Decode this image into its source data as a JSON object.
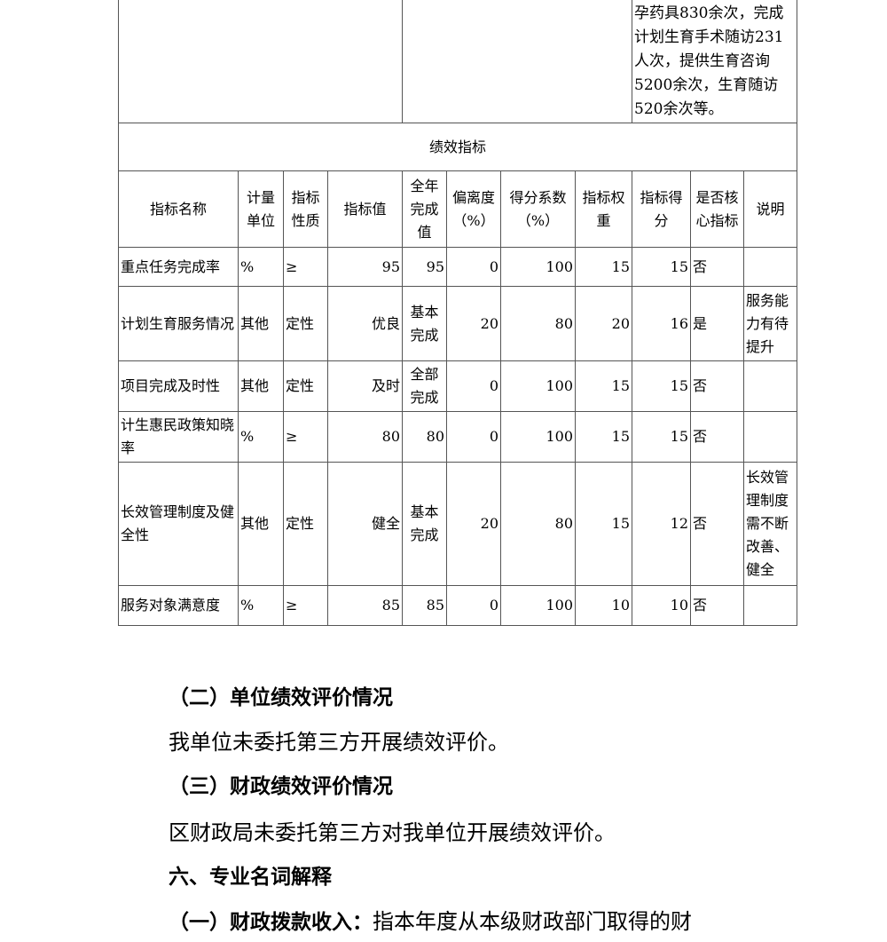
{
  "top_row_text": "孕药具830余次，完成计划生育手术随访231人次，提供生育咨询5200余次，生育随访520余次等。",
  "section_title": "绩效指标",
  "headers": [
    "指标名称",
    "计量单位",
    "指标性质",
    "指标值",
    "全年完成值",
    "偏离度（%）",
    "得分系数（%）",
    "指标权重",
    "指标得分",
    "是否核心指标",
    "说明"
  ],
  "rows": [
    [
      "重点任务完成率",
      "%",
      "≥",
      "95",
      "95",
      "0",
      "100",
      "15",
      "15",
      "否",
      ""
    ],
    [
      "计划生育服务情况",
      "其他",
      "定性",
      "优良",
      "基本完成",
      "20",
      "80",
      "20",
      "16",
      "是",
      "服务能力有待提升"
    ],
    [
      "项目完成及时性",
      "其他",
      "定性",
      "及时",
      "全部完成",
      "0",
      "100",
      "15",
      "15",
      "否",
      ""
    ],
    [
      "计生惠民政策知晓率",
      "%",
      "≥",
      "80",
      "80",
      "0",
      "100",
      "15",
      "15",
      "否",
      ""
    ],
    [
      "长效管理制度及健全性",
      "其他",
      "定性",
      "健全",
      "基本完成",
      "20",
      "80",
      "15",
      "12",
      "否",
      "长效管理制度需不断改善、健全"
    ],
    [
      "服务对象满意度",
      "%",
      "≥",
      "85",
      "85",
      "0",
      "100",
      "10",
      "10",
      "否",
      ""
    ]
  ],
  "paragraphs": {
    "h2": "（二）单位绩效评价情况",
    "p2": "我单位未委托第三方开展绩效评价。",
    "h3": "（三）财政绩效评价情况",
    "p3": "区财政局未委托第三方对我单位开展绩效评价。",
    "h6": "六、专业名词解释",
    "term1_label": "（一）财政拨款收入：",
    "term1_text": "指本年度从本级财政部门取得的财"
  }
}
